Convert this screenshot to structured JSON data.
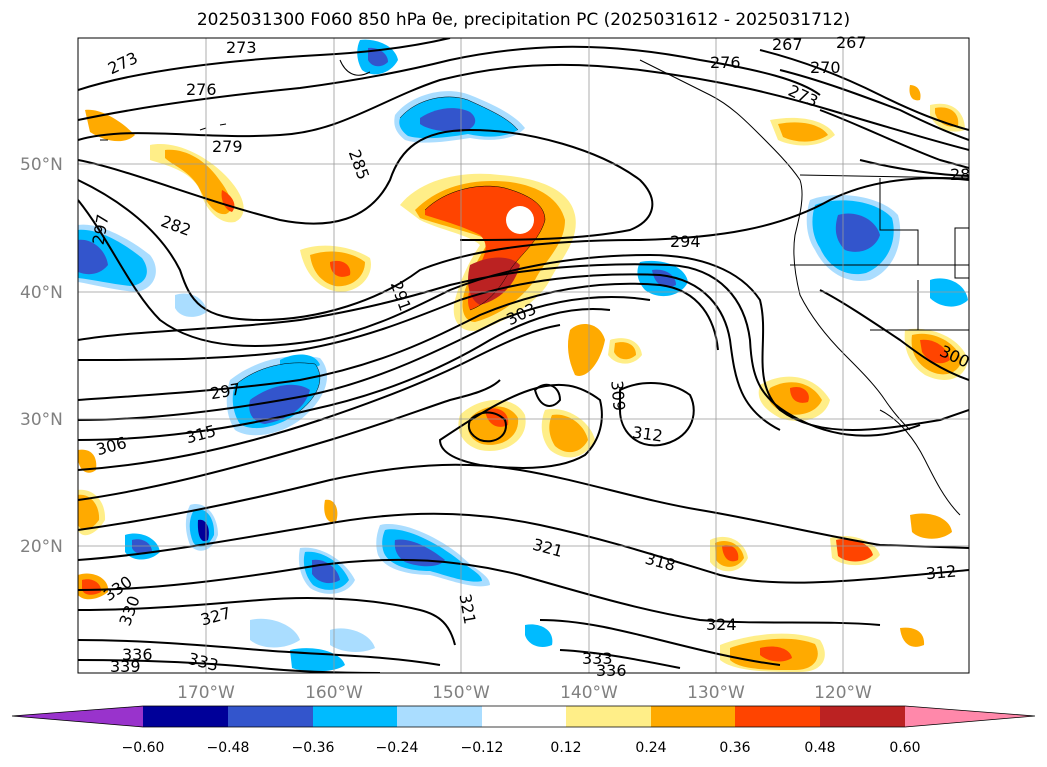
{
  "title": "2025031300 F060 850 hPa θe, precipitation PC (2025031612 - 2025031712)",
  "lat_labels": [
    {
      "value": 50,
      "text": "50°N"
    },
    {
      "value": 40,
      "text": "40°N"
    },
    {
      "value": 30,
      "text": "30°N"
    },
    {
      "value": 20,
      "text": "20°N"
    }
  ],
  "lon_labels": [
    {
      "value": -170,
      "text": "170°W"
    },
    {
      "value": -160,
      "text": "160°W"
    },
    {
      "value": -150,
      "text": "150°W"
    },
    {
      "value": -140,
      "text": "140°W"
    },
    {
      "value": -130,
      "text": "130°W"
    },
    {
      "value": -120,
      "text": "120°W"
    }
  ],
  "contour_labels": [
    "273",
    "273",
    "276",
    "279",
    "282",
    "285",
    "291",
    "294",
    "297",
    "297",
    "303",
    "306",
    "309",
    "312",
    "312",
    "315",
    "318",
    "321",
    "321",
    "324",
    "327",
    "330",
    "330",
    "333",
    "333",
    "336",
    "336",
    "339",
    "267",
    "267",
    "270",
    "273",
    "276",
    "28",
    "300"
  ],
  "colorbar": {
    "colors": [
      "#9933cc",
      "#000099",
      "#3355cc",
      "#00bbff",
      "#aaddff",
      "#ffffff",
      "#ffee88",
      "#ffaa00",
      "#ff4400",
      "#bb2222",
      "#ff88aa"
    ],
    "tick_labels": [
      "−0.60",
      "−0.48",
      "−0.36",
      "−0.24",
      "−0.12",
      "0.12",
      "0.24",
      "0.36",
      "0.48",
      "0.60"
    ]
  }
}
